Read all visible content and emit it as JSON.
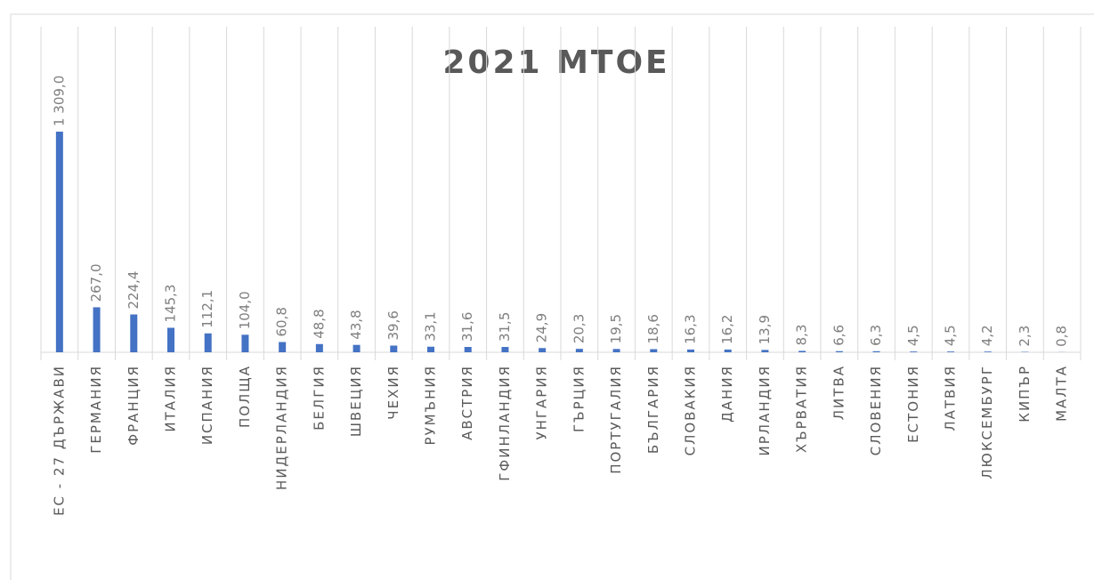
{
  "chart_data": {
    "type": "bar",
    "title": "2021 MTOE",
    "categories": [
      "ЕС - 27 ДЪРЖАВИ",
      "ГЕРМАНИЯ",
      "ФРАНЦИЯ",
      "ИТАЛИЯ",
      "ИСПАНИЯ",
      "ПОЛЩА",
      "НИДЕРЛАНДИЯ",
      "БЕЛГИЯ",
      "ШВЕЦИЯ",
      "ЧЕХИЯ",
      "РУМЪНИЯ",
      "АВСТРИЯ",
      "ГФИНЛАНДИЯ",
      "УНГАРИЯ",
      "ГЪРЦИЯ",
      "ПОРТУГАЛИЯ",
      "БЪЛГАРИЯ",
      "СЛОВАКИЯ",
      "ДАНИЯ",
      "ИРЛАНДИЯ",
      "ХЪРВАТИЯ",
      "ЛИТВА",
      "СЛОВЕНИЯ",
      "ЕСТОНИЯ",
      "ЛАТВИЯ",
      "ЛЮКСЕМБУРГ",
      "КИПЪР",
      "МАЛТА"
    ],
    "values": [
      1309.0,
      267.0,
      224.4,
      145.3,
      112.1,
      104.0,
      60.8,
      48.8,
      43.8,
      39.6,
      33.1,
      31.6,
      31.5,
      24.9,
      20.3,
      19.5,
      18.6,
      16.3,
      16.2,
      13.9,
      8.3,
      6.6,
      6.3,
      4.5,
      4.5,
      4.2,
      2.3,
      0.8
    ],
    "value_labels": [
      "1 309,0",
      "267,0",
      "224,4",
      "145,3",
      "112,1",
      "104,0",
      "60,8",
      "48,8",
      "43,8",
      "39,6",
      "33,1",
      "31,6",
      "31,5",
      "24,9",
      "20,3",
      "19,5",
      "18,6",
      "16,3",
      "16,2",
      "13,9",
      "8,3",
      "6,6",
      "6,3",
      "4,5",
      "4,5",
      "4,2",
      "2,3",
      "0,8"
    ],
    "color": "#4472c4"
  }
}
